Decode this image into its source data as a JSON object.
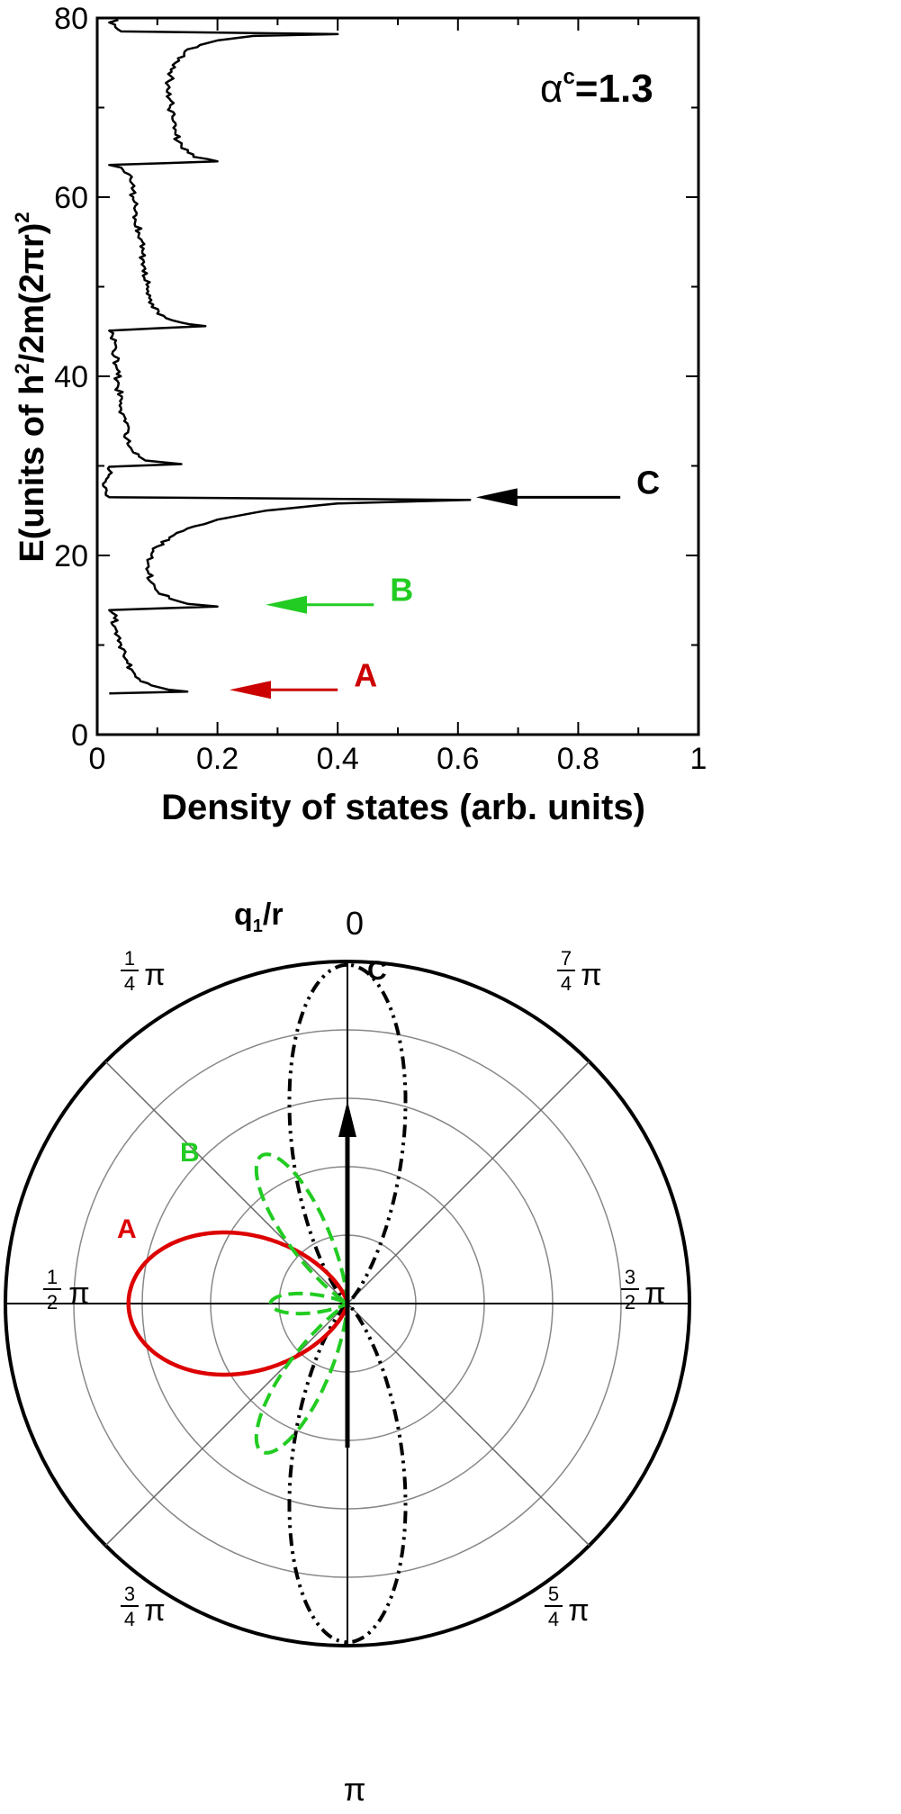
{
  "chart_data": [
    {
      "type": "line",
      "annotation": {
        "alpha_label": "α",
        "alpha_sup": "c",
        "alpha_value": "=1.3"
      },
      "xlabel": "Density of states (arb. units)",
      "ylabel_parts": {
        "p1": "E",
        "p2": "(units of h",
        "sup1": "2",
        "p3": "/2m(2πr)",
        "sup2": "2"
      },
      "xlim": [
        0,
        1
      ],
      "ylim": [
        0,
        80
      ],
      "x_ticks": [
        0,
        0.2,
        0.4,
        0.6,
        0.8,
        1
      ],
      "x_tick_labels": [
        "0",
        "0.2",
        "0.4",
        "0.6",
        "0.8",
        "1"
      ],
      "y_ticks": [
        0,
        20,
        40,
        60,
        80
      ],
      "y_tick_labels": [
        "0",
        "20",
        "40",
        "60",
        "80"
      ],
      "grid": false,
      "series": [
        {
          "color": "#000000",
          "points": [
            [
              0.02,
              4.6
            ],
            [
              0.15,
              4.8
            ],
            [
              0.12,
              5.0
            ],
            [
              0.09,
              5.5
            ],
            [
              0.07,
              6.2
            ],
            [
              0.06,
              7.0
            ],
            [
              0.05,
              8.0
            ],
            [
              0.045,
              9.0
            ],
            [
              0.04,
              10.0
            ],
            [
              0.035,
              11.0
            ],
            [
              0.03,
              12.0
            ],
            [
              0.028,
              13.0
            ],
            [
              0.025,
              13.6
            ],
            [
              0.02,
              13.9
            ],
            [
              0.2,
              14.3
            ],
            [
              0.15,
              14.6
            ],
            [
              0.12,
              15.2
            ],
            [
              0.1,
              16.0
            ],
            [
              0.09,
              17.0
            ],
            [
              0.085,
              18.0
            ],
            [
              0.085,
              19.0
            ],
            [
              0.09,
              20.0
            ],
            [
              0.1,
              21.0
            ],
            [
              0.12,
              22.0
            ],
            [
              0.15,
              23.0
            ],
            [
              0.2,
              24.0
            ],
            [
              0.28,
              25.0
            ],
            [
              0.4,
              25.8
            ],
            [
              0.62,
              26.2
            ],
            [
              0.02,
              26.5
            ],
            [
              0.015,
              27.5
            ],
            [
              0.015,
              28.5
            ],
            [
              0.02,
              29.5
            ],
            [
              0.02,
              29.9
            ],
            [
              0.14,
              30.2
            ],
            [
              0.08,
              30.6
            ],
            [
              0.06,
              31.5
            ],
            [
              0.05,
              33.0
            ],
            [
              0.045,
              35.0
            ],
            [
              0.04,
              37.0
            ],
            [
              0.035,
              39.0
            ],
            [
              0.032,
              41.0
            ],
            [
              0.03,
              43.0
            ],
            [
              0.025,
              44.5
            ],
            [
              0.02,
              45.1
            ],
            [
              0.18,
              45.6
            ],
            [
              0.14,
              46.0
            ],
            [
              0.1,
              47.0
            ],
            [
              0.09,
              48.5
            ],
            [
              0.085,
              50.0
            ],
            [
              0.08,
              52.0
            ],
            [
              0.075,
              54.0
            ],
            [
              0.07,
              56.0
            ],
            [
              0.065,
              58.0
            ],
            [
              0.06,
              60.0
            ],
            [
              0.055,
              62.0
            ],
            [
              0.04,
              63.3
            ],
            [
              0.02,
              63.6
            ],
            [
              0.2,
              64.0
            ],
            [
              0.16,
              64.5
            ],
            [
              0.14,
              65.5
            ],
            [
              0.13,
              67.0
            ],
            [
              0.125,
              69.0
            ],
            [
              0.12,
              71.0
            ],
            [
              0.12,
              73.0
            ],
            [
              0.13,
              75.0
            ],
            [
              0.15,
              76.5
            ],
            [
              0.2,
              77.5
            ],
            [
              0.26,
              78.0
            ],
            [
              0.4,
              78.2
            ],
            [
              0.04,
              78.5
            ],
            [
              0.03,
              79.0
            ],
            [
              0.02,
              79.5
            ],
            [
              0.035,
              79.8
            ]
          ]
        }
      ],
      "arrows": [
        {
          "label": "A",
          "color": "#cc0000",
          "x_from": 0.4,
          "x_to": 0.22,
          "y": 5
        },
        {
          "label": "B",
          "color": "#22cc22",
          "x_from": 0.46,
          "x_to": 0.28,
          "y": 14.5
        },
        {
          "label": "C",
          "color": "#000000",
          "x_from": 0.87,
          "x_to": 0.63,
          "y": 26.5
        }
      ]
    },
    {
      "type": "polar",
      "title_parts": {
        "q": "q",
        "sub": "1",
        "rest": "/r"
      },
      "angle_labels": {
        "top": "0",
        "bottom": "π",
        "upper_left": {
          "num": "1",
          "den": "4",
          "sym": "π"
        },
        "upper_right": {
          "num": "7",
          "den": "4",
          "sym": "π"
        },
        "left": {
          "num": "1",
          "den": "2",
          "sym": "π"
        },
        "right": {
          "num": "3",
          "den": "2",
          "sym": "π"
        },
        "lower_left": {
          "num": "3",
          "den": "4",
          "sym": "π"
        },
        "lower_right": {
          "num": "5",
          "den": "4",
          "sym": "π"
        }
      },
      "rings": 5,
      "series": [
        {
          "name": "A",
          "color": "#dd0000",
          "style": "solid"
        },
        {
          "name": "B",
          "color": "#22cc22",
          "style": "dashed"
        },
        {
          "name": "C",
          "color": "#000000",
          "style": "dash-dot"
        }
      ]
    }
  ]
}
